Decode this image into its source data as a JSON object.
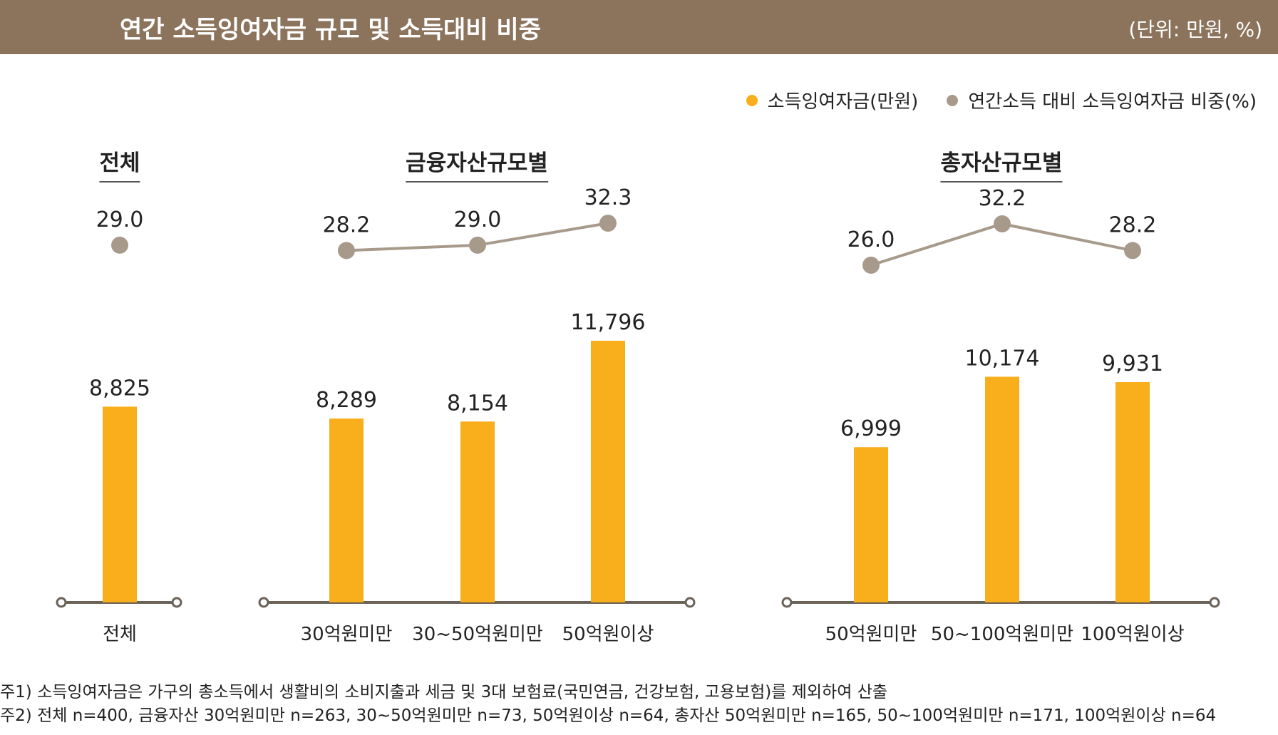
{
  "header": {
    "title": "연간 소득잉여자금 규모 및 소득대비 비중",
    "unit": "(단위: 만원, %)"
  },
  "legend": [
    {
      "label": "소득잉여자금(만원)",
      "color": "#f9ae1c"
    },
    {
      "label": "연간소득 대비 소득잉여자금 비중(%)",
      "color": "#a89a8b"
    }
  ],
  "chart_data": [
    {
      "type": "bar+line",
      "title": "전체",
      "categories": [
        "전체"
      ],
      "series": [
        {
          "name": "소득잉여자금(만원)",
          "values": [
            8825
          ],
          "labels": [
            "8,825"
          ]
        },
        {
          "name": "연간소득 대비 소득잉여자금 비중(%)",
          "values": [
            29.0
          ],
          "labels": [
            "29.0"
          ]
        }
      ]
    },
    {
      "type": "bar+line",
      "title": "금융자산규모별",
      "categories": [
        "30억원미만",
        "30~50억원미만",
        "50억원이상"
      ],
      "series": [
        {
          "name": "소득잉여자금(만원)",
          "values": [
            8289,
            8154,
            11796
          ],
          "labels": [
            "8,289",
            "8,154",
            "11,796"
          ]
        },
        {
          "name": "연간소득 대비 소득잉여자금 비중(%)",
          "values": [
            28.2,
            29.0,
            32.3
          ],
          "labels": [
            "28.2",
            "29.0",
            "32.3"
          ]
        }
      ]
    },
    {
      "type": "bar+line",
      "title": "총자산규모별",
      "categories": [
        "50억원미만",
        "50~100억원미만",
        "100억원이상"
      ],
      "series": [
        {
          "name": "소득잉여자금(만원)",
          "values": [
            6999,
            10174,
            9931
          ],
          "labels": [
            "6,999",
            "10,174",
            "9,931"
          ]
        },
        {
          "name": "연간소득 대비 소득잉여자금 비중(%)",
          "values": [
            26.0,
            32.2,
            28.2
          ],
          "labels": [
            "26.0",
            "32.2",
            "28.2"
          ]
        }
      ]
    }
  ],
  "notes": [
    "주1) 소득잉여자금은 가구의 총소득에서 생활비의 소비지출과 세금 및 3대 보험료(국민연금, 건강보험, 고용보험)를 제외하여 산출",
    "주2) 전체 n=400, 금융자산 30억원미만 n=263, 30~50억원미만 n=73, 50억원이상 n=64, 총자산 50억원미만 n=165, 50~100억원미만 n=171, 100억원이상 n=64"
  ],
  "colors": {
    "bar": "#f9ae1c",
    "line": "#a89a8b",
    "axis": "#6b6259",
    "header": "#8b735c"
  }
}
